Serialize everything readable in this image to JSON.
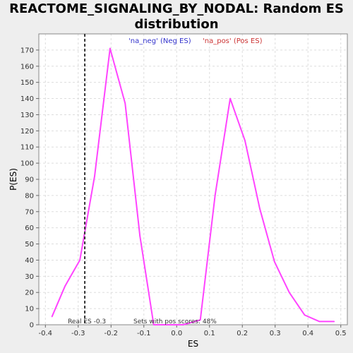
{
  "title_lines": [
    "REACTOME_SIGNALING_BY_NODAL: Random ES",
    "distribution"
  ],
  "chart_data": {
    "type": "line",
    "title": "REACTOME_SIGNALING_BY_NODAL: Random ES distribution",
    "xlabel": "ES",
    "ylabel": "P(ES)",
    "xlim": [
      -0.42,
      0.52
    ],
    "ylim": [
      0,
      180
    ],
    "xticks": [
      -0.4,
      -0.3,
      -0.2,
      -0.1,
      0.0,
      0.1,
      0.2,
      0.3,
      0.4,
      0.5
    ],
    "xtick_labels": [
      "-0.4",
      "-0.3",
      "-0.2",
      "-0.1",
      "0.0",
      "0.1",
      "0.2",
      "0.3",
      "0.4",
      "0.5"
    ],
    "yticks": [
      0,
      10,
      20,
      30,
      40,
      50,
      60,
      70,
      80,
      90,
      100,
      110,
      120,
      130,
      140,
      150,
      160,
      170
    ],
    "grid": true,
    "legend": [
      {
        "label": "'na_neg' (Neg ES)",
        "color": "#3333cc"
      },
      {
        "label": "'na_pos' (Pos ES)",
        "color": "#cc3333"
      }
    ],
    "series": [
      {
        "color": "#ff44ff",
        "x": [
          -0.38,
          -0.34,
          -0.295,
          -0.25,
          -0.203,
          -0.157,
          -0.112,
          -0.07,
          -0.025,
          0.02,
          0.072,
          0.117,
          0.163,
          0.208,
          0.253,
          0.298,
          0.343,
          0.39,
          0.435,
          0.48
        ],
        "y": [
          5,
          24,
          40,
          92,
          171,
          137,
          55,
          0,
          0,
          0,
          3,
          80,
          140,
          114,
          72,
          39,
          20,
          6,
          2,
          2
        ]
      }
    ],
    "real_es": {
      "x": -0.28,
      "label": "Real ES -0.3",
      "color": "#333333"
    },
    "annotation": "Sets with pos scores: 48%"
  }
}
